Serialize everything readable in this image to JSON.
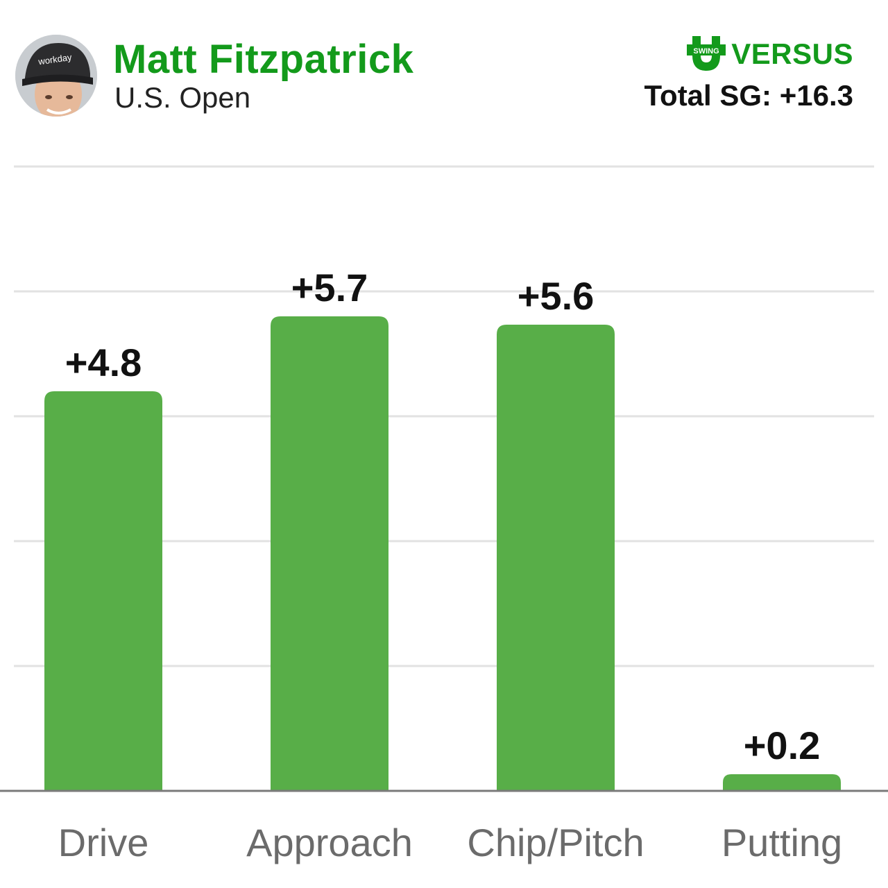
{
  "header": {
    "player_name": "Matt Fitzpatrick",
    "event": "U.S. Open",
    "brand_name": "VERSUS",
    "brand_tag": "SWING",
    "total_sg": "Total SG: +16.3",
    "avatar_cap_text": "workday"
  },
  "colors": {
    "bar": "#58ae48",
    "title": "#139a1b",
    "grid": "#e2e2e2",
    "axis": "#7a7a7a",
    "tick_label": "#6b6b6b"
  },
  "chart_data": {
    "type": "bar",
    "categories": [
      "Drive",
      "Approach",
      "Chip/Pitch",
      "Putting"
    ],
    "values": [
      4.8,
      5.7,
      5.6,
      0.2
    ],
    "data_labels": [
      "+4.8",
      "+5.7",
      "+5.6",
      "+0.2"
    ],
    "ylim": [
      0,
      7.5
    ],
    "grid": true,
    "title": "",
    "xlabel": "",
    "ylabel": ""
  }
}
